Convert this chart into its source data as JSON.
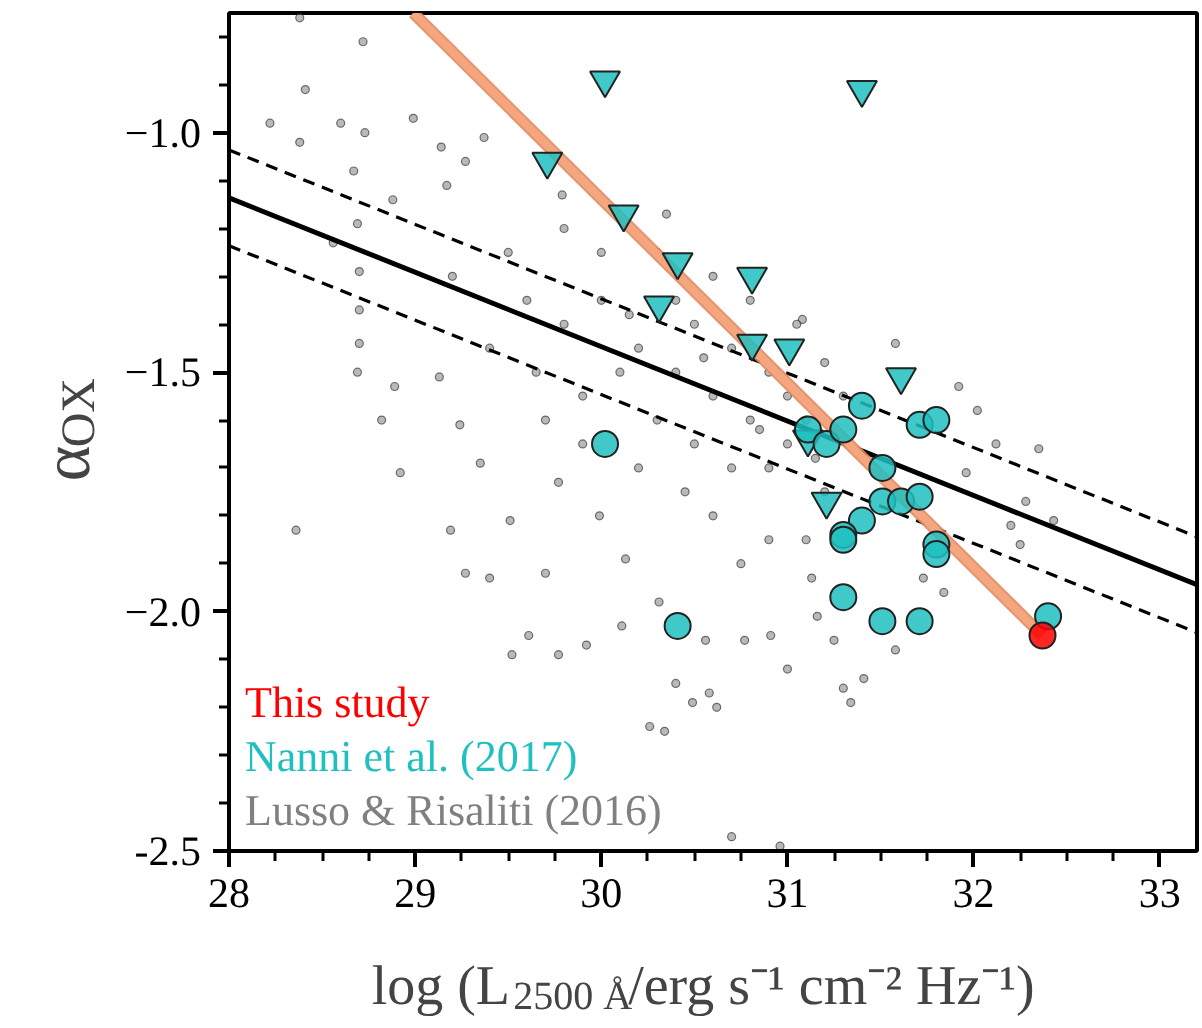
{
  "chart_data": {
    "type": "scatter",
    "xlabel": "log (L$_{2500 Å}$/erg s⁻¹ cm⁻² Hz⁻¹)",
    "ylabel": "α$_{OX}$",
    "xlim": [
      28,
      33.2
    ],
    "ylim": [
      -2.5,
      -0.75
    ],
    "xticks": [
      28,
      {
        "value": 28.25,
        "label": null
      },
      {
        "value": 28.5,
        "label": null
      },
      {
        "value": 28.75,
        "label": null
      },
      29,
      {
        "value": 29.25,
        "label": null
      },
      {
        "value": 29.5,
        "label": null
      },
      {
        "value": 29.75,
        "label": null
      },
      30,
      {
        "value": 30.25,
        "label": null
      },
      {
        "value": 30.5,
        "label": null
      },
      {
        "value": 30.75,
        "label": null
      },
      31,
      {
        "value": 31.25,
        "label": null
      },
      {
        "value": 31.5,
        "label": null
      },
      {
        "value": 31.75,
        "label": null
      },
      32,
      {
        "value": 32.25,
        "label": null
      },
      {
        "value": 32.5,
        "label": null
      },
      {
        "value": 32.75,
        "label": null
      },
      33
    ],
    "yticks": [
      -2.5,
      {
        "value": -2.4,
        "label": null
      },
      {
        "value": -2.3,
        "label": null
      },
      {
        "value": -2.2,
        "label": null
      },
      {
        "value": -2.1,
        "label": null
      },
      {
        "value": -2.0,
        "label": "−2.0"
      },
      {
        "value": -1.9,
        "label": null
      },
      {
        "value": -1.8,
        "label": null
      },
      {
        "value": -1.7,
        "label": null
      },
      {
        "value": -1.6,
        "label": null
      },
      {
        "value": -1.5,
        "label": "−1.5"
      },
      {
        "value": -1.4,
        "label": null
      },
      {
        "value": -1.3,
        "label": null
      },
      {
        "value": -1.2,
        "label": null
      },
      {
        "value": -1.1,
        "label": null
      },
      {
        "value": -1.0,
        "label": "−1.0"
      },
      {
        "value": -0.9,
        "label": null
      },
      {
        "value": -0.8,
        "label": null
      }
    ],
    "grid": false,
    "legend": "bottom left",
    "series": [
      {
        "name": "Lusso & Risaliti (2016)",
        "type": "scatter",
        "marker": "circle",
        "color": "#808080",
        "x": [
          28.38,
          28.72,
          28.41,
          28.22,
          28.6,
          28.99,
          28.38,
          28.73,
          29.37,
          29.14,
          29.27,
          28.67,
          29.17,
          28.88,
          28.69,
          28.56,
          28.7,
          28.7,
          28.7,
          28.69,
          28.89,
          28.82,
          30.35,
          29.79,
          31.58,
          31.92,
          32.02,
          32.35,
          32.12,
          31.08,
          28.36,
          28.92,
          29.19,
          29.27,
          29.4,
          29.52,
          29.61,
          29.77,
          29.92,
          30.11,
          30.26,
          30.34,
          30.4,
          30.49,
          30.58,
          30.62,
          30.7,
          30.96,
          31.0,
          30.77,
          30.91,
          31.3,
          31.34,
          31.41,
          31.58,
          31.84,
          31.96,
          32.2,
          32.28,
          32.43,
          32.25,
          31.16,
          31.25,
          31.73,
          31.13,
          30.13,
          29.99,
          29.77,
          29.51,
          29.7,
          29.35,
          29.24,
          29.13,
          30.56,
          30.31,
          30.0,
          30.2,
          30.4,
          30.5,
          30.6,
          30.7,
          30.8,
          30.9,
          31.0,
          31.1,
          30.3,
          30.5,
          30.7,
          30.9,
          31.0,
          29.8,
          29.6,
          29.9,
          30.1,
          30.4,
          30.6,
          30.8,
          29.5,
          29.4,
          29.7,
          30.2,
          30.6,
          30.9,
          31.2,
          31.3,
          31.2,
          30.0,
          29.2,
          29.8,
          30.3,
          31.05,
          30.45,
          30.75,
          31.1,
          29.9,
          30.15,
          30.55,
          30.85,
          31.15,
          29.65
        ],
        "values": [
          -0.76,
          -0.81,
          -0.91,
          -0.98,
          -0.98,
          -0.97,
          -1.02,
          -1.0,
          -1.01,
          -1.03,
          -1.06,
          -1.08,
          -1.11,
          -1.14,
          -1.19,
          -1.23,
          -1.29,
          -1.37,
          -1.44,
          -1.5,
          -1.53,
          -1.6,
          -1.17,
          -1.13,
          -1.44,
          -1.53,
          -1.58,
          -1.66,
          -1.65,
          -1.39,
          -1.83,
          -1.71,
          -1.83,
          -1.92,
          -1.93,
          -2.09,
          -2.05,
          -2.09,
          -2.07,
          -2.03,
          -2.24,
          -2.25,
          -2.15,
          -2.19,
          -2.17,
          -2.2,
          -2.47,
          -2.49,
          -2.12,
          -2.06,
          -2.05,
          -2.16,
          -2.19,
          -2.14,
          -2.08,
          -1.96,
          -1.71,
          -1.82,
          -1.77,
          -1.81,
          -1.86,
          -2.01,
          -2.06,
          -1.93,
          -1.93,
          -1.89,
          -1.8,
          -1.73,
          -1.81,
          -1.92,
          -1.69,
          -1.61,
          -1.51,
          -2.06,
          -1.98,
          -1.35,
          -1.45,
          -1.5,
          -1.4,
          -1.55,
          -1.45,
          -1.6,
          -1.5,
          -1.55,
          -1.6,
          -1.6,
          -1.65,
          -1.7,
          -1.7,
          -1.65,
          -1.4,
          -1.35,
          -1.55,
          -1.5,
          -1.35,
          -1.3,
          -1.35,
          -1.25,
          -1.45,
          -1.6,
          -1.7,
          -1.8,
          -1.85,
          -1.75,
          -1.55,
          -1.48,
          -1.25,
          -1.3,
          -1.2,
          -1.25,
          -1.4,
          -1.75,
          -1.9,
          -1.85,
          -1.65,
          -1.38,
          -1.47,
          -1.62,
          -1.68,
          -1.5
        ]
      },
      {
        "type": "line",
        "line_style": "solid",
        "color": "#000000",
        "x": [
          28,
          33.2
        ],
        "values": [
          -1.136,
          -1.944
        ]
      },
      {
        "type": "line",
        "line_style": "dashed",
        "color": "#000000",
        "x": [
          28,
          33.2
        ],
        "values": [
          -1.036,
          -1.844
        ]
      },
      {
        "type": "line",
        "line_style": "dashed",
        "color": "#000000",
        "x": [
          28,
          33.2
        ],
        "values": [
          -1.236,
          -2.044
        ]
      },
      {
        "type": "line",
        "line_style": "solid",
        "color": "#f5a67f",
        "x": [
          28.99,
          32.37
        ],
        "values": [
          -0.75,
          -2.05
        ]
      },
      {
        "type": "scatter",
        "marker": "triangle",
        "color": "#20c0c0",
        "x": [
          30.02,
          31.4,
          29.71,
          30.12,
          30.41,
          30.81,
          30.31,
          30.81,
          31.01,
          31.61,
          31.11,
          31.21
        ],
        "values": [
          -0.89,
          -0.91,
          -1.06,
          -1.17,
          -1.27,
          -1.3,
          -1.36,
          -1.44,
          -1.45,
          -1.51,
          -1.64,
          -1.77
        ]
      },
      {
        "name": "Nanni et al. (2017)",
        "type": "scatter",
        "marker": "circle",
        "color": "#20c0c0",
        "x": [
          31.4,
          31.71,
          31.8,
          30.02,
          31.11,
          31.21,
          31.3,
          31.51,
          31.51,
          31.61,
          31.71,
          31.4,
          31.3,
          31.3,
          31.8,
          31.8,
          31.3,
          30.41,
          31.51,
          31.71,
          32.4
        ],
        "values": [
          -1.57,
          -1.61,
          -1.6,
          -1.65,
          -1.62,
          -1.65,
          -1.62,
          -1.7,
          -1.77,
          -1.77,
          -1.76,
          -1.81,
          -1.84,
          -1.85,
          -1.86,
          -1.88,
          -1.97,
          -2.03,
          -2.02,
          -2.02,
          -2.01
        ]
      },
      {
        "name": "This study",
        "type": "scatter",
        "marker": "circle",
        "color": "#ff0000",
        "x": [
          32.37
        ],
        "values": [
          -2.05
        ]
      }
    ]
  }
}
